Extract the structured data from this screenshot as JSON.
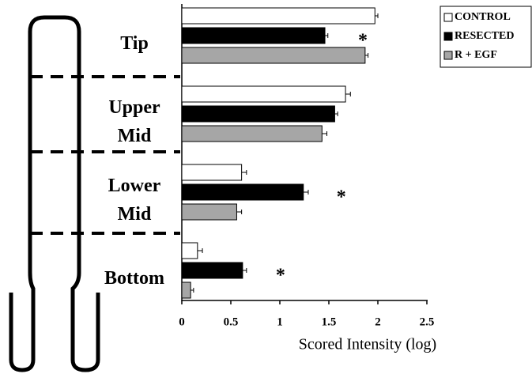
{
  "chart_data": {
    "type": "bar",
    "orientation": "horizontal",
    "categories": [
      "Tip",
      "Upper Mid",
      "Lower Mid",
      "Bottom"
    ],
    "series": [
      {
        "name": "CONTROL",
        "color": "#ffffff",
        "values": [
          1.97,
          1.67,
          0.61,
          0.16
        ],
        "errors": [
          0.03,
          0.05,
          0.05,
          0.05
        ]
      },
      {
        "name": "RESECTED",
        "color": "#000000",
        "values": [
          1.46,
          1.56,
          1.24,
          0.62
        ],
        "errors": [
          0.03,
          0.03,
          0.05,
          0.04
        ]
      },
      {
        "name": "R + EGF",
        "color": "#a6a6a6",
        "values": [
          1.87,
          1.43,
          0.56,
          0.09
        ],
        "errors": [
          0.03,
          0.05,
          0.05,
          0.03
        ]
      }
    ],
    "significance_marks": [
      "*",
      null,
      "*",
      "*"
    ],
    "xlabel": "Scored Intensity (log)",
    "xlim": [
      0,
      2.5
    ],
    "xticks": [
      0,
      0.5,
      1,
      1.5,
      2,
      2.5
    ],
    "legend": "top-right"
  }
}
